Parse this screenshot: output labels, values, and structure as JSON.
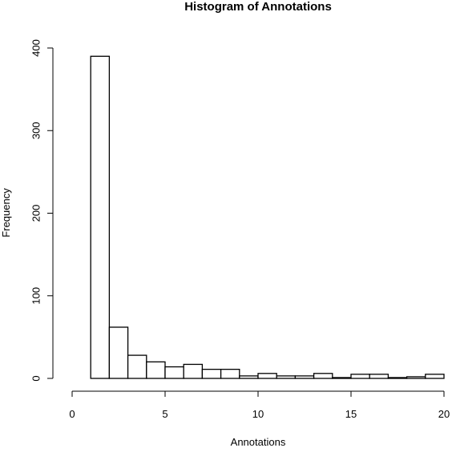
{
  "chart_data": {
    "type": "bar",
    "title": "Histogram of Annotations",
    "xlabel": "Annotations",
    "ylabel": "Frequency",
    "xlim": [
      0,
      20
    ],
    "ylim": [
      0,
      400
    ],
    "x_ticks": [
      0,
      5,
      10,
      15,
      20
    ],
    "y_ticks": [
      0,
      100,
      200,
      300,
      400
    ],
    "bin_edges": [
      1,
      2,
      3,
      4,
      5,
      6,
      7,
      8,
      9,
      10,
      11,
      12,
      13,
      14,
      15,
      16,
      17,
      18,
      19,
      20
    ],
    "values": [
      390,
      62,
      28,
      20,
      14,
      17,
      11,
      11,
      3,
      6,
      3,
      3,
      6,
      1,
      5,
      5,
      1,
      2,
      5
    ],
    "bar_fill": "#ffffff",
    "bar_stroke": "#000000",
    "grid": false
  }
}
